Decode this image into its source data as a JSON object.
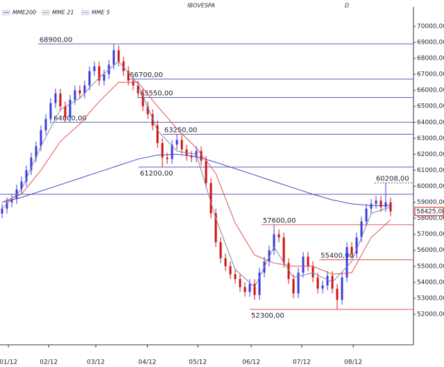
{
  "chart_data": {
    "type": "candlestick",
    "title": "IBOVESPA",
    "subtitle": "D",
    "x": [
      0,
      1,
      2,
      3,
      4,
      5,
      6,
      7,
      8,
      9,
      10,
      11,
      12,
      13,
      14,
      15,
      16,
      17,
      18,
      19,
      20,
      21,
      22,
      23,
      24,
      25,
      26,
      27,
      28,
      29,
      30,
      31,
      32,
      33,
      34,
      35,
      36,
      37,
      38,
      39,
      40,
      41,
      42,
      43,
      44,
      45,
      46,
      47,
      48,
      49,
      50,
      51,
      52,
      53,
      54,
      55,
      56,
      57,
      58,
      59,
      60,
      61,
      62,
      63,
      64,
      65,
      66,
      67,
      68,
      69,
      70,
      71,
      72,
      73,
      74,
      75,
      76,
      77,
      78,
      79,
      80
    ],
    "open": [
      58300,
      58600,
      59000,
      59200,
      59800,
      60300,
      61000,
      61800,
      62500,
      63500,
      64200,
      65200,
      65800,
      65000,
      64300,
      65400,
      66000,
      65800,
      66300,
      67200,
      67500,
      66600,
      67000,
      67600,
      68500,
      67800,
      67200,
      66600,
      66300,
      65800,
      65000,
      64500,
      63800,
      62700,
      61800,
      61700,
      62600,
      62900,
      62300,
      61900,
      61800,
      62200,
      61600,
      60200,
      58300,
      56500,
      55500,
      55000,
      54500,
      54200,
      53700,
      53400,
      53900,
      53200,
      54600,
      55300,
      56000,
      57000,
      56800,
      55200,
      54200,
      53300,
      54600,
      55600,
      55000,
      54300,
      53600,
      53800,
      54400,
      53600,
      52900,
      54300,
      56200,
      55800,
      56800,
      57800,
      58600,
      58900,
      59100,
      58700,
      59000
    ],
    "high": [
      58900,
      59300,
      59500,
      60100,
      60600,
      61300,
      62100,
      62800,
      63800,
      64500,
      65500,
      66100,
      66100,
      65300,
      65700,
      66300,
      66300,
      66600,
      67500,
      67800,
      67800,
      67300,
      67900,
      68900,
      68800,
      68100,
      67500,
      66900,
      66600,
      66100,
      65300,
      64800,
      64100,
      63000,
      62100,
      62900,
      63250,
      63200,
      62600,
      62200,
      62500,
      62500,
      61900,
      60500,
      58600,
      56800,
      55800,
      55300,
      54800,
      54500,
      54000,
      54200,
      54200,
      54900,
      55600,
      56300,
      57600,
      57300,
      57100,
      55500,
      54500,
      54900,
      55900,
      55900,
      55300,
      54600,
      54100,
      54700,
      54700,
      53900,
      54600,
      56500,
      56500,
      57100,
      58100,
      58900,
      59200,
      59400,
      59400,
      60208,
      59300
    ],
    "low": [
      58000,
      58300,
      58700,
      58900,
      59500,
      60000,
      60700,
      61500,
      62200,
      63200,
      63900,
      64900,
      64700,
      64000,
      64000,
      65100,
      65500,
      65500,
      66000,
      66900,
      66300,
      66300,
      66700,
      67300,
      67500,
      66900,
      66300,
      66000,
      65500,
      64700,
      64200,
      63500,
      62400,
      61200,
      61400,
      61400,
      62300,
      62000,
      61600,
      61500,
      61500,
      61300,
      59900,
      58000,
      56200,
      55200,
      54700,
      54200,
      53900,
      53400,
      53100,
      53100,
      52900,
      52900,
      54300,
      55000,
      55700,
      56500,
      54900,
      53900,
      53000,
      53000,
      54300,
      54700,
      54000,
      53300,
      53300,
      53500,
      53300,
      52300,
      52600,
      54000,
      55500,
      55500,
      56500,
      57500,
      58300,
      58600,
      58400,
      58400,
      58125
    ],
    "close": [
      58600,
      59000,
      59200,
      59800,
      60300,
      61000,
      61800,
      62500,
      63500,
      64200,
      65200,
      65800,
      65000,
      64300,
      65400,
      66000,
      65800,
      66300,
      67200,
      67500,
      66600,
      67000,
      67600,
      68500,
      67800,
      67200,
      66600,
      66300,
      65800,
      65000,
      64500,
      63800,
      62700,
      61800,
      61700,
      62600,
      62900,
      62300,
      61900,
      61800,
      62200,
      61600,
      60200,
      58300,
      56500,
      55500,
      55000,
      54500,
      54200,
      53700,
      53400,
      53900,
      53200,
      54600,
      55300,
      56000,
      57000,
      56800,
      55200,
      54200,
      53300,
      54600,
      55600,
      55000,
      54300,
      53600,
      53800,
      54400,
      53600,
      52900,
      54300,
      56200,
      55800,
      56800,
      57800,
      58600,
      58900,
      59100,
      58700,
      59000,
      58425
    ],
    "up_color": "#3a3adc",
    "down_color": "#d01010",
    "series": [
      {
        "name": "MME200",
        "color": "#4646c8",
        "x": [
          0,
          4,
          8,
          12,
          16,
          20,
          24,
          28,
          32,
          36,
          40,
          44,
          48,
          52,
          56,
          60,
          64,
          68,
          72,
          76,
          80
        ],
        "values": [
          59000,
          59300,
          59700,
          60100,
          60500,
          60900,
          61300,
          61700,
          61950,
          62000,
          61850,
          61500,
          61100,
          60700,
          60300,
          59900,
          59500,
          59150,
          58900,
          58800,
          58800
        ]
      },
      {
        "name": "MME 21",
        "color": "#e05050",
        "x": [
          0,
          4,
          8,
          12,
          16,
          20,
          24,
          28,
          32,
          36,
          40,
          44,
          48,
          52,
          56,
          60,
          64,
          68,
          72,
          76,
          80
        ],
        "values": [
          59000,
          59500,
          61000,
          62800,
          63900,
          65300,
          66500,
          66500,
          65000,
          63600,
          62400,
          60800,
          57700,
          55700,
          55200,
          55000,
          55000,
          54500,
          54600,
          56800,
          57900
        ]
      },
      {
        "name": "MME  5",
        "color": "#8080b0",
        "x": [
          0,
          4,
          8,
          12,
          16,
          20,
          24,
          28,
          32,
          36,
          40,
          44,
          48,
          52,
          56,
          60,
          64,
          68,
          72,
          76,
          80
        ],
        "values": [
          58600,
          59800,
          62500,
          64800,
          65500,
          66800,
          67800,
          66400,
          63500,
          62200,
          62000,
          58000,
          54800,
          53700,
          56200,
          54300,
          54600,
          54000,
          55300,
          58300,
          58700
        ]
      }
    ],
    "levels": [
      {
        "value": 68900,
        "label": "68900,00",
        "color": "#5a5ab4",
        "x_start": 7.4,
        "label_side": "above"
      },
      {
        "value": 66700,
        "label": "66700,00",
        "color": "#5a5ab4",
        "x_start": 26,
        "label_side": "above"
      },
      {
        "value": 65550,
        "label": "65550,00",
        "color": "#5a5ab4",
        "x_start": 28.1,
        "label_side": "above"
      },
      {
        "value": 64000,
        "label": "64000,00",
        "color": "#5a5ab4",
        "x_start": 10.3,
        "label_side": "above"
      },
      {
        "value": 63250,
        "label": "63250,00",
        "color": "#5a5ab4",
        "x_start": 33.1,
        "label_side": "above"
      },
      {
        "value": 61200,
        "label": "61200,00",
        "color": "#5a5ab4",
        "x_start": 28.1,
        "label_side": "below"
      },
      {
        "value": 59500,
        "color": "#5a5ab4",
        "x_start": -0.43
      },
      {
        "value": 60208,
        "label": "60208,00",
        "color": "#555555",
        "x_start": 76.7,
        "label_side": "above",
        "dashed": true
      },
      {
        "value": 57600,
        "label": "57600,00",
        "color": "#e05050",
        "x_start": 53.4,
        "label_side": "above"
      },
      {
        "value": 55400,
        "label": "55400,00",
        "color": "#e05050",
        "x_start": 65.3,
        "label_side": "above"
      },
      {
        "value": 52300,
        "label": "52300,00",
        "color": "#e05050",
        "x_start": 51,
        "label_side": "below"
      }
    ],
    "last_price": {
      "value": 58425,
      "label": "58425,00"
    },
    "xlim": [
      -0.43,
      84.71
    ],
    "ylim": [
      50090,
      71210
    ],
    "xticks": [
      {
        "value": 1.3,
        "label": "01/12"
      },
      {
        "value": 9.6,
        "label": "02/12"
      },
      {
        "value": 19.3,
        "label": "03/12"
      },
      {
        "value": 29.9,
        "label": "04/12"
      },
      {
        "value": 40.3,
        "label": "05/12"
      },
      {
        "value": 51.3,
        "label": "06/12"
      },
      {
        "value": 61.7,
        "label": "07/12"
      },
      {
        "value": 72.3,
        "label": "08/12"
      }
    ],
    "yticks": [
      {
        "value": 52000,
        "label": "52000,00"
      },
      {
        "value": 53000,
        "label": "53000,00"
      },
      {
        "value": 54000,
        "label": "54000,00"
      },
      {
        "value": 55000,
        "label": "55000,00"
      },
      {
        "value": 56000,
        "label": "56000,00"
      },
      {
        "value": 57000,
        "label": "57000,00"
      },
      {
        "value": 58000,
        "label": "58000,00"
      },
      {
        "value": 59000,
        "label": "59000,00"
      },
      {
        "value": 60000,
        "label": "60000,00"
      },
      {
        "value": 61000,
        "label": "61000,00"
      },
      {
        "value": 62000,
        "label": "62000,00"
      },
      {
        "value": 63000,
        "label": "63000,00"
      },
      {
        "value": 64000,
        "label": "64000,00"
      },
      {
        "value": 65000,
        "label": "65000,00"
      },
      {
        "value": 66000,
        "label": "66000,00"
      },
      {
        "value": 67000,
        "label": "67000,00"
      },
      {
        "value": 68000,
        "label": "68000,00"
      },
      {
        "value": 69000,
        "label": "69000,00"
      },
      {
        "value": 70000,
        "label": "70000,00"
      }
    ]
  }
}
